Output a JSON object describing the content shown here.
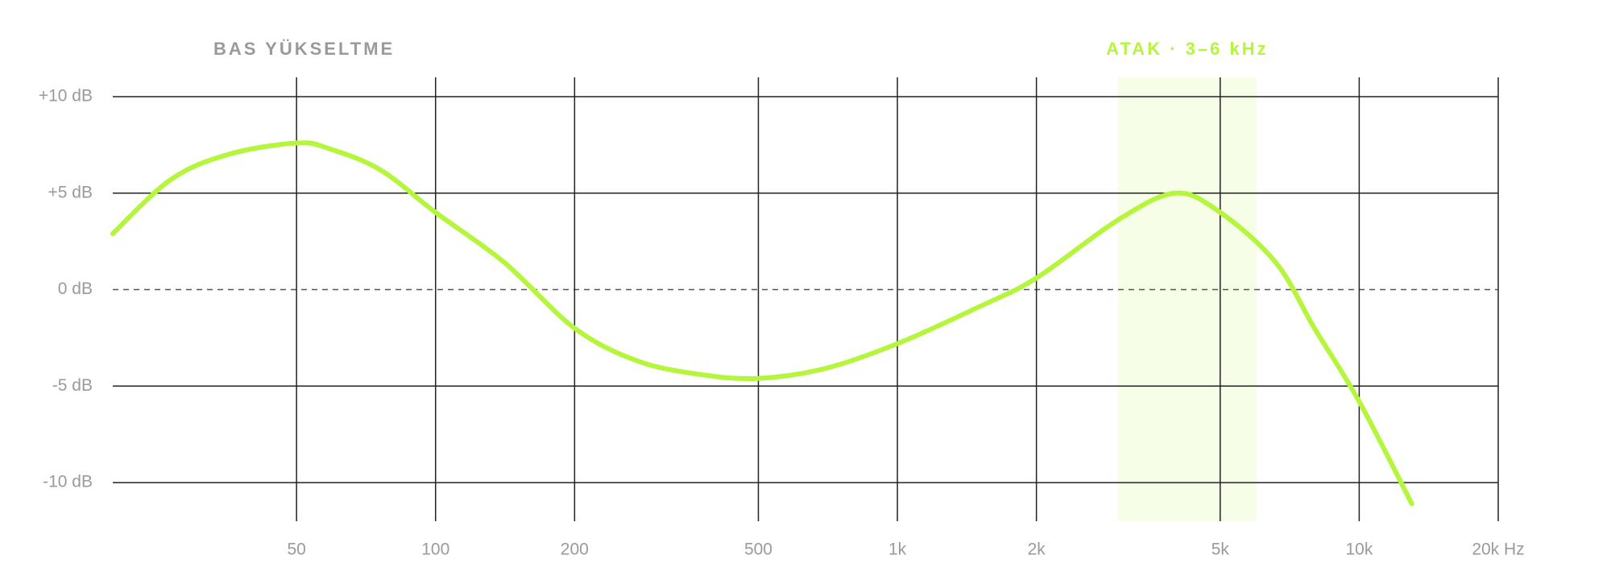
{
  "chart_data": {
    "type": "line",
    "annotation": "BAS YÜKSELTME",
    "highlight": {
      "from": 3000,
      "to": 6000,
      "label": "ATAK · 3–6 kHz",
      "color": "#b5f53b"
    },
    "x": [
      20,
      26.7,
      35.5,
      50,
      58.9,
      76,
      100,
      141,
      200,
      274,
      375,
      500,
      694,
      1000,
      1500,
      2000,
      3000,
      4000,
      5000,
      6600,
      8000,
      10000,
      13000
    ],
    "series": [
      {
        "color": "#b5f53b",
        "values": [
          2.9,
          5.7,
          7.0,
          7.6,
          7.3,
          6.2,
          4.0,
          1.4,
          -2.0,
          -3.7,
          -4.4,
          -4.6,
          -4.1,
          -2.8,
          -0.9,
          0.6,
          3.6,
          5.0,
          4.0,
          1.4,
          -2.0,
          -5.8,
          -11.1
        ]
      }
    ],
    "xscale": "log",
    "xlim": [
      20,
      20000
    ],
    "xticks": [
      50,
      100,
      200,
      500,
      {
        "value": 1000,
        "label": "1k"
      },
      {
        "value": 2000,
        "label": "2k"
      },
      {
        "value": 5000,
        "label": "5k"
      },
      {
        "value": 10000,
        "label": "10k"
      },
      {
        "value": 20000,
        "label": "20k Hz"
      }
    ],
    "ylim": [
      -12,
      11
    ],
    "yticks": [
      {
        "value": 10,
        "label": "+10 dB"
      },
      {
        "value": 5,
        "label": "+5 dB"
      },
      {
        "value": 0,
        "label": "0 dB"
      },
      {
        "value": -5,
        "label": "-5 dB"
      },
      {
        "value": -10,
        "label": "-10 dB"
      }
    ],
    "grid": true
  }
}
